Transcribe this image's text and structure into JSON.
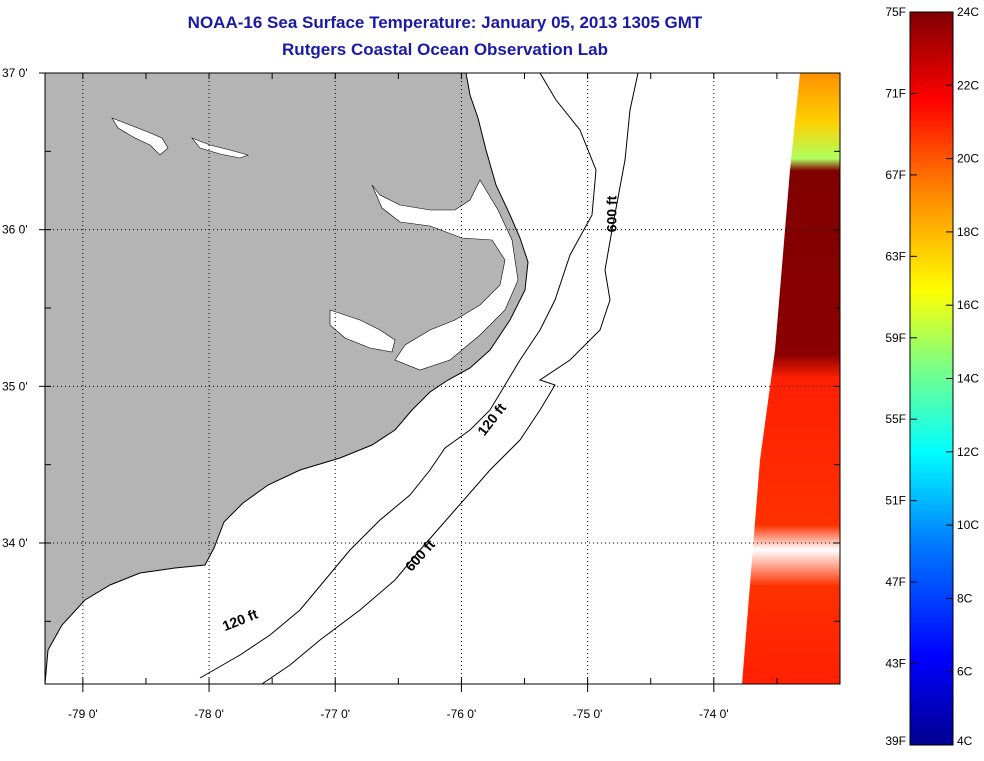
{
  "title": "NOAA-16 Sea Surface Temperature:  January 05, 2013 1305 GMT",
  "subtitle": "Rutgers Coastal Ocean Observation Lab",
  "lon_axis": {
    "range": [
      -79.3,
      -73.0
    ],
    "ticks": [
      {
        "value": -79,
        "label": "-79 0'"
      },
      {
        "value": -78,
        "label": "-78 0'"
      },
      {
        "value": -77,
        "label": "-77 0'"
      },
      {
        "value": -76,
        "label": "-76 0'"
      },
      {
        "value": -75,
        "label": "-75 0'"
      },
      {
        "value": -74,
        "label": "-74 0'"
      }
    ]
  },
  "lat_axis": {
    "range": [
      33.1,
      37.0
    ],
    "ticks": [
      {
        "value": 37,
        "label": "37 0'"
      },
      {
        "value": 36,
        "label": "36 0'"
      },
      {
        "value": 35,
        "label": "35 0'"
      },
      {
        "value": 34,
        "label": "34 0'"
      }
    ]
  },
  "contour_labels": [
    {
      "text": "600 ft",
      "lon": -74.77,
      "lat": 36.1,
      "rotate": -90
    },
    {
      "text": "120 ft",
      "lon": -75.73,
      "lat": 34.77,
      "rotate": -52
    },
    {
      "text": "600 ft",
      "lon": -76.3,
      "lat": 33.9,
      "rotate": -48
    },
    {
      "text": "120 ft",
      "lon": -77.74,
      "lat": 33.48,
      "rotate": -22
    }
  ],
  "colorbar": {
    "f_labels": [
      "75F",
      "71F",
      "67F",
      "63F",
      "59F",
      "55F",
      "51F",
      "47F",
      "43F",
      "39F"
    ],
    "c_labels": [
      "24C",
      "22C",
      "20C",
      "18C",
      "16C",
      "14C",
      "12C",
      "10C",
      "8C",
      "6C",
      "4C"
    ],
    "colors": [
      "#00008f",
      "#0000ff",
      "#0080ff",
      "#00ffff",
      "#80ff80",
      "#ffff00",
      "#ff8000",
      "#ff0000",
      "#800000"
    ]
  },
  "land_color": "#b4b4b4",
  "data_swath_colors": [
    "#800000",
    "#ff0000",
    "#ff2000",
    "#ff6000",
    "#ffe000",
    "#80ff80"
  ]
}
